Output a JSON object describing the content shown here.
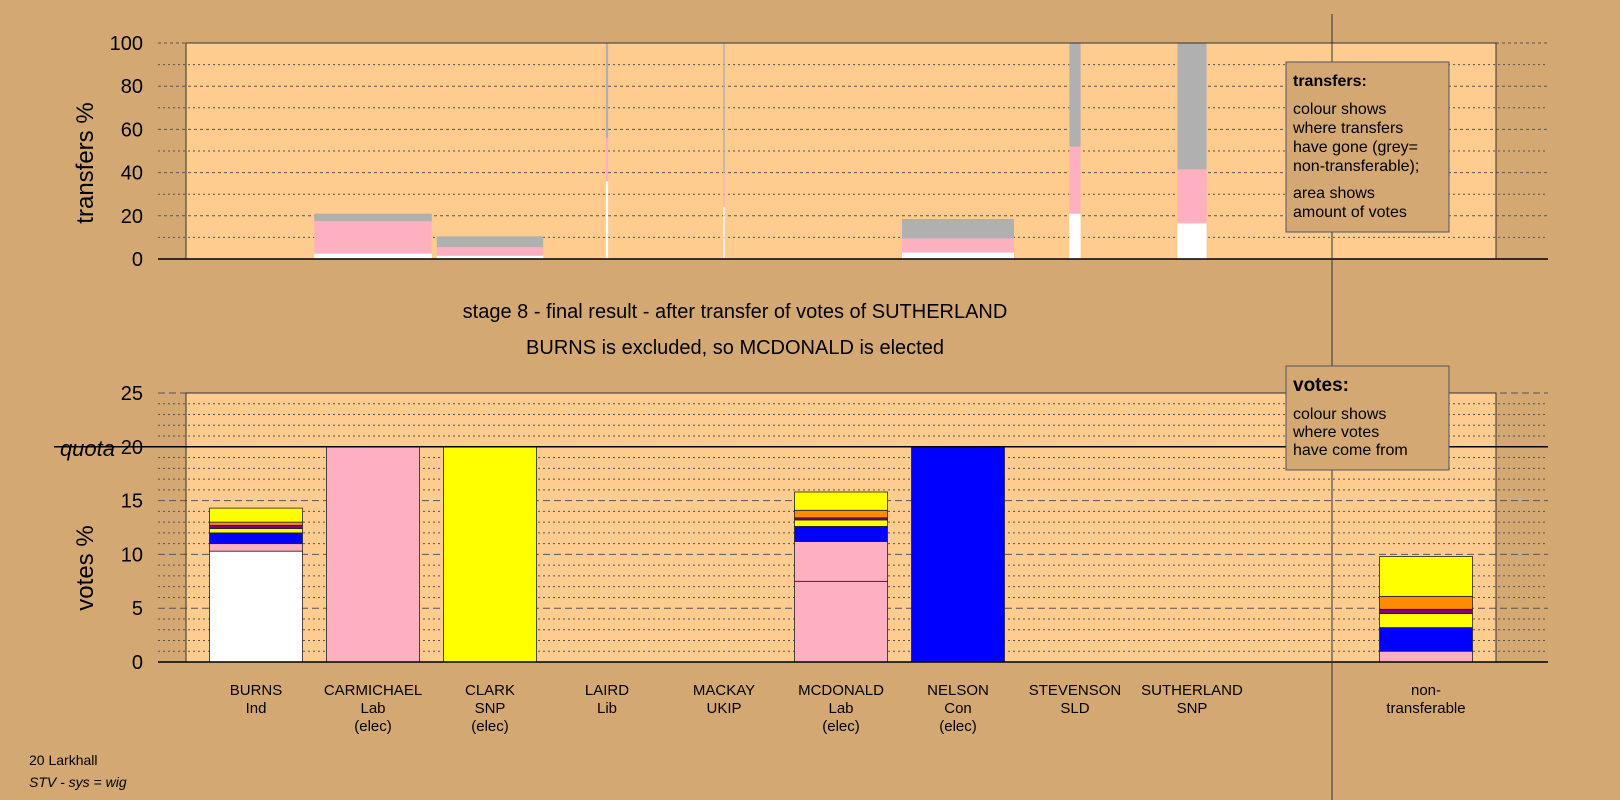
{
  "colors": {
    "background": "#d4a873",
    "plot_area": "#ffcc8f",
    "Ind": "#ffffff",
    "Lab": "#ffb0c0",
    "SNP": "#ffff00",
    "Con": "#0000ff",
    "Lib": "#ff8c00",
    "UKIP": "#800080",
    "SLD": "#ffff33",
    "non_transferable": "#b0b0b0"
  },
  "title": {
    "line1": "stage 8 - final result - after transfer of votes of SUTHERLAND",
    "line2": "BURNS is excluded, so MCDONALD is elected"
  },
  "legend_transfers": {
    "heading": "transfers:",
    "lines": [
      "colour shows",
      "where transfers",
      "have gone (grey=",
      "non-transferable);",
      "area shows",
      "amount of votes"
    ]
  },
  "legend_votes": {
    "heading": "votes:",
    "lines": [
      "colour shows",
      "where votes",
      "have come from"
    ]
  },
  "footer": {
    "ward": "20 Larkhall",
    "system": "STV - sys = wig"
  },
  "candidates": [
    {
      "name": "BURNS",
      "party": "Ind",
      "status": ""
    },
    {
      "name": "CARMICHAEL",
      "party": "Lab",
      "status": "(elec)"
    },
    {
      "name": "CLARK",
      "party": "SNP",
      "status": "(elec)"
    },
    {
      "name": "LAIRD",
      "party": "Lib",
      "status": ""
    },
    {
      "name": "MACKAY",
      "party": "UKIP",
      "status": ""
    },
    {
      "name": "MCDONALD",
      "party": "Lab",
      "status": "(elec)"
    },
    {
      "name": "NELSON",
      "party": "Con",
      "status": "(elec)"
    },
    {
      "name": "STEVENSON",
      "party": "SLD",
      "status": ""
    },
    {
      "name": "SUTHERLAND",
      "party": "SNP",
      "status": ""
    },
    {
      "name": "non-",
      "party": "transferable",
      "status": ""
    }
  ],
  "chart_data": [
    {
      "type": "bar",
      "ylabel": "transfers %",
      "ylim": [
        0,
        100
      ],
      "yticks": [
        0,
        20,
        40,
        60,
        80,
        100
      ],
      "grid": true,
      "columns": [
        {
          "candidate": "BURNS",
          "width_pct": 0,
          "segments": []
        },
        {
          "candidate": "CARMICHAEL",
          "width_pct": 21,
          "segments": [
            {
              "party": "Ind",
              "value": 2.5
            },
            {
              "party": "Lab",
              "value": 15
            },
            {
              "party": "non_transferable",
              "value": 3.5
            }
          ]
        },
        {
          "candidate": "CLARK",
          "width_pct": 19,
          "segments": [
            {
              "party": "Ind",
              "value": 1.5
            },
            {
              "party": "Lab",
              "value": 4
            },
            {
              "party": "non_transferable",
              "value": 5
            }
          ]
        },
        {
          "candidate": "LAIRD",
          "width_pct": 0.4,
          "segments": [
            {
              "party": "Ind",
              "value": 36
            },
            {
              "party": "Lab",
              "value": 20
            },
            {
              "party": "non_transferable",
              "value": 44
            }
          ]
        },
        {
          "candidate": "MACKAY",
          "width_pct": 0.25,
          "segments": [
            {
              "party": "Ind",
              "value": 24
            },
            {
              "party": "Lab",
              "value": 16
            },
            {
              "party": "non_transferable",
              "value": 60
            }
          ]
        },
        {
          "candidate": "MCDONALD",
          "width_pct": 0,
          "segments": []
        },
        {
          "candidate": "NELSON",
          "width_pct": 20,
          "segments": [
            {
              "party": "Ind",
              "value": 3
            },
            {
              "party": "Lab",
              "value": 6.5
            },
            {
              "party": "non_transferable",
              "value": 9
            }
          ]
        },
        {
          "candidate": "STEVENSON",
          "width_pct": 2,
          "segments": [
            {
              "party": "Ind",
              "value": 21
            },
            {
              "party": "Lab",
              "value": 31
            },
            {
              "party": "non_transferable",
              "value": 48
            }
          ]
        },
        {
          "candidate": "SUTHERLAND",
          "width_pct": 5.2,
          "segments": [
            {
              "party": "Ind",
              "value": 16.5
            },
            {
              "party": "Lab",
              "value": 25
            },
            {
              "party": "non_transferable",
              "value": 58.5
            }
          ]
        }
      ]
    },
    {
      "type": "bar",
      "ylabel": "votes %",
      "ylim": [
        0,
        25
      ],
      "yticks": [
        0,
        5,
        10,
        15,
        20,
        25
      ],
      "quota": 20,
      "quota_label": "quota",
      "grid": true,
      "columns": [
        {
          "candidate": "BURNS",
          "segments": [
            {
              "party": "Ind",
              "value": 10.3
            },
            {
              "party": "Lab",
              "value": 0.7
            },
            {
              "party": "Con",
              "value": 1
            },
            {
              "party": "SNP",
              "value": 0.4
            },
            {
              "party": "UKIP",
              "value": 0.3
            },
            {
              "party": "Lib",
              "value": 0.3
            },
            {
              "party": "SNP",
              "value": 1.3
            }
          ]
        },
        {
          "candidate": "CARMICHAEL",
          "segments": [
            {
              "party": "Lab",
              "value": 20
            }
          ]
        },
        {
          "candidate": "CLARK",
          "segments": [
            {
              "party": "SNP",
              "value": 20
            }
          ]
        },
        {
          "candidate": "LAIRD",
          "segments": []
        },
        {
          "candidate": "MACKAY",
          "segments": []
        },
        {
          "candidate": "MCDONALD",
          "segments": [
            {
              "party": "Lab",
              "value": 7.5
            },
            {
              "party": "Lab",
              "value": 3.7
            },
            {
              "party": "Con",
              "value": 1.4
            },
            {
              "party": "SNP",
              "value": 0.6
            },
            {
              "party": "UKIP",
              "value": 0.2
            },
            {
              "party": "Lib",
              "value": 0.7
            },
            {
              "party": "SNP",
              "value": 1.7
            }
          ]
        },
        {
          "candidate": "NELSON",
          "segments": [
            {
              "party": "Con",
              "value": 20
            }
          ]
        },
        {
          "candidate": "STEVENSON",
          "segments": []
        },
        {
          "candidate": "SUTHERLAND",
          "segments": []
        },
        {
          "candidate": "non-transferable",
          "segments": [
            {
              "party": "Lab",
              "value": 1
            },
            {
              "party": "Con",
              "value": 2.2
            },
            {
              "party": "SNP",
              "value": 1.3
            },
            {
              "party": "UKIP",
              "value": 0.4
            },
            {
              "party": "Lib",
              "value": 1.2
            },
            {
              "party": "SNP",
              "value": 3.7
            }
          ]
        }
      ]
    }
  ]
}
